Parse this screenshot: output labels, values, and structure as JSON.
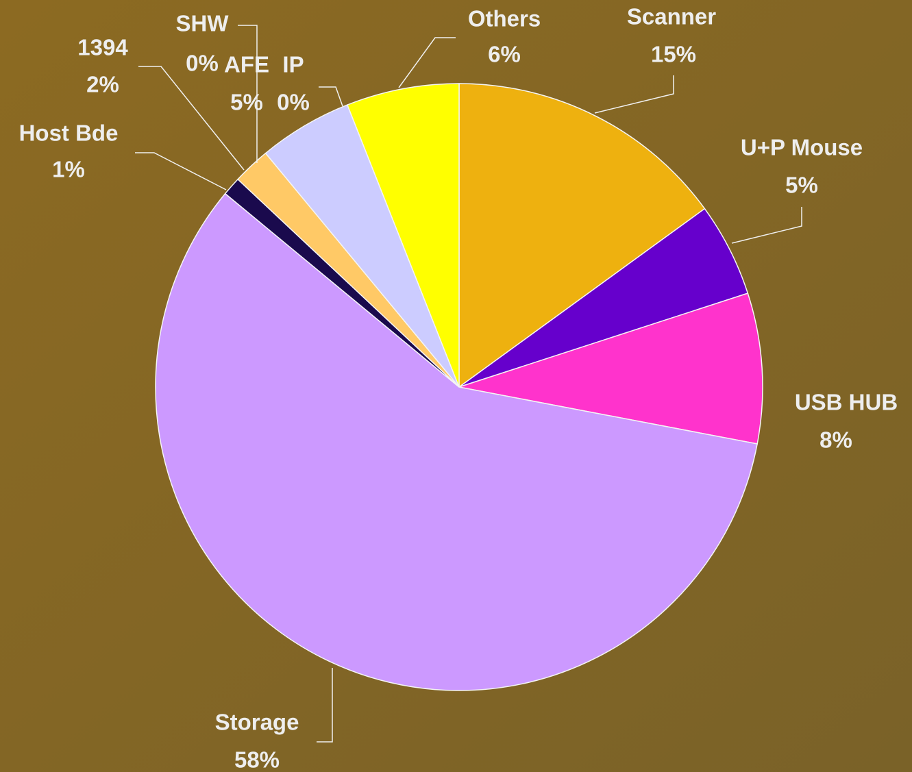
{
  "chart_data": {
    "type": "pie",
    "categories": [
      "Scanner",
      "U+P Mouse",
      "USB HUB",
      "Storage",
      "Host Bde",
      "1394",
      "SHW",
      "AFE",
      "IP",
      "Others"
    ],
    "values": [
      15,
      5,
      8,
      58,
      1,
      2,
      0,
      5,
      0,
      6
    ],
    "value_labels": [
      "15%",
      "5%",
      "8%",
      "58%",
      "1%",
      "2%",
      "0%",
      "5%",
      "0%",
      "6%"
    ],
    "colors": [
      "#eeb10f",
      "#6600cc",
      "#ff33cc",
      "#cc99ff",
      "#1a0a4d",
      "#ffc966",
      "#e0e0ff",
      "#ccccff",
      "#f8f8a0",
      "#ffff00"
    ]
  }
}
